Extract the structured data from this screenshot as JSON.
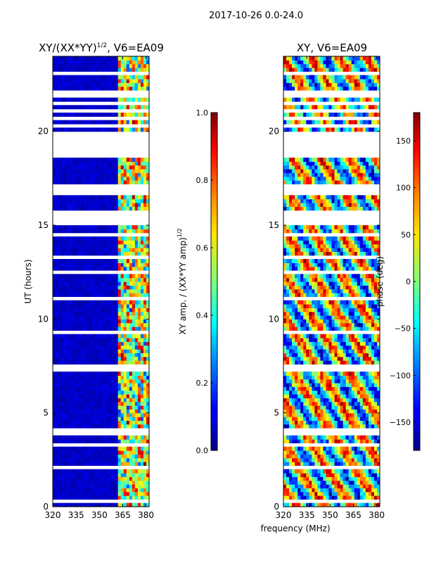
{
  "chart_data": {
    "type": "heatmap",
    "suptitle": "2017-10-26 0.0-24.0",
    "shared_xlabel": "frequency (MHz)",
    "panels": [
      {
        "id": "amp",
        "title_main": "XY/(XX*YY)",
        "title_sup": "1/2",
        "title_tail": ", V6=EA09",
        "ylabel": "UT (hours)",
        "xlim": [
          320,
          382
        ],
        "ylim": [
          0,
          24
        ],
        "xticks": [
          320,
          335,
          350,
          365,
          380
        ],
        "yticks": [
          0,
          5,
          10,
          15,
          20
        ],
        "colorbar": {
          "label_main": "XY amp. / (XX*YY amp)",
          "label_sup": "1/2",
          "range": [
            0.0,
            1.0
          ],
          "ticks": [
            "0.0",
            "0.2",
            "0.4",
            "0.6",
            "0.8",
            "1.0"
          ],
          "tick_values": [
            0.0,
            0.2,
            0.4,
            0.6,
            0.8,
            1.0
          ]
        }
      },
      {
        "id": "phase",
        "title_main": "XY, V6=EA09",
        "ylabel": "",
        "xlim": [
          320,
          382
        ],
        "ylim": [
          0,
          24
        ],
        "xticks": [
          320,
          335,
          350,
          365,
          380
        ],
        "yticks": [
          0,
          5,
          10,
          15,
          20
        ],
        "colorbar": {
          "label_main": "phase (deg)",
          "range": [
            -180,
            180
          ],
          "ticks": [
            "−150",
            "−100",
            "−50",
            "0",
            "50",
            "100",
            "150"
          ],
          "tick_values": [
            -150,
            -100,
            -50,
            0,
            50,
            100,
            150
          ]
        }
      }
    ],
    "data_gaps_ut_hours": [
      [
        23.05,
        23.3
      ],
      [
        22.75,
        22.9
      ],
      [
        21.9,
        22.2
      ],
      [
        21.5,
        21.6
      ],
      [
        21.1,
        21.2
      ],
      [
        20.7,
        20.8
      ],
      [
        20.3,
        20.4
      ],
      [
        18.55,
        19.95
      ],
      [
        17.05,
        17.15
      ],
      [
        16.55,
        16.95
      ],
      [
        15.65,
        15.85
      ],
      [
        15.0,
        15.55
      ],
      [
        14.4,
        14.5
      ],
      [
        13.3,
        13.38
      ],
      [
        12.4,
        12.5
      ],
      [
        11.1,
        11.18
      ],
      [
        10.2,
        10.28
      ],
      [
        9.3,
        9.38
      ],
      [
        8.4,
        8.48
      ],
      [
        7.45,
        7.55
      ],
      [
        7.25,
        7.32
      ],
      [
        5.0,
        5.08
      ],
      [
        4.35,
        4.42
      ],
      [
        4.05,
        4.12
      ],
      [
        3.85,
        3.92
      ],
      [
        3.3,
        3.38
      ],
      [
        2.8,
        2.88
      ],
      [
        2.1,
        2.18
      ],
      [
        1.55,
        1.62
      ],
      [
        1.15,
        1.22
      ],
      [
        0.6,
        0.68
      ],
      [
        0.25,
        0.32
      ]
    ],
    "amp_bright_band_mhz": [
      362,
      382
    ]
  }
}
